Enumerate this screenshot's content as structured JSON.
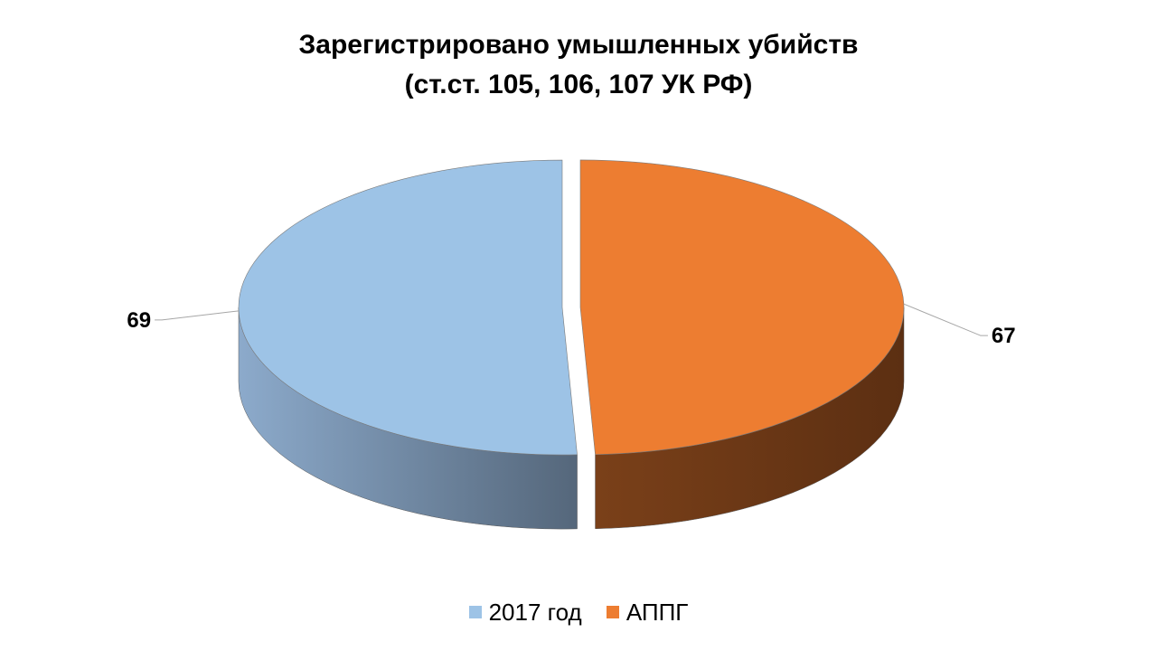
{
  "chart_data": {
    "type": "pie",
    "title_lines": [
      "Зарегистрировано  умышленных убийств",
      "(ст.ст. 105, 106, 107 УК РФ)"
    ],
    "categories": [
      "2017 год",
      "АППГ"
    ],
    "values": [
      69,
      67
    ],
    "colors": [
      "#9DC3E6",
      "#ED7D31"
    ],
    "legend_position": "bottom",
    "three_d": true
  }
}
